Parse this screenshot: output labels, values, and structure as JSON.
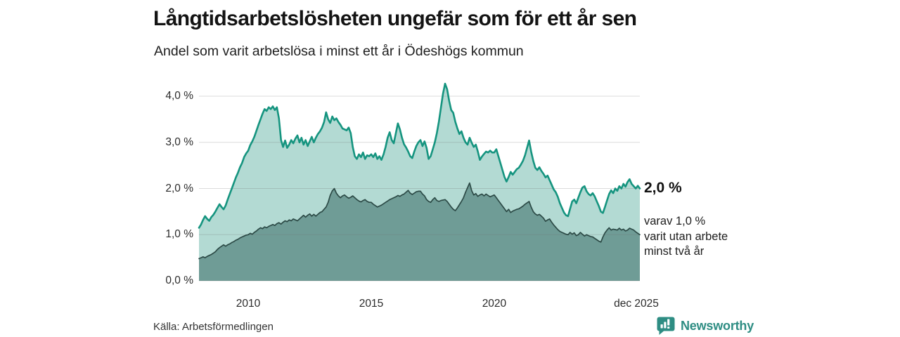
{
  "header": {
    "title": "Långtidsarbetslösheten ungefär som för ett år sen",
    "subtitle": "Andel som varit arbetslösa i minst ett år i Ödeshögs kommun"
  },
  "annotations": {
    "total_end_label": "2,0 %",
    "sub_line1": "varav 1,0 %",
    "sub_line2": "varit utan arbete",
    "sub_line3": "minst två år"
  },
  "footer": {
    "source": "Källa: Arbetsförmedlingen",
    "brand": "Newsworthy"
  },
  "colors": {
    "total_line": "#15947f",
    "total_fill": "#b3dad3",
    "two_year_line": "#2c4a46",
    "two_year_fill": "#6f9c96",
    "gridline": "rgba(110,110,110,0.25)",
    "brand_teal": "#2e8d83"
  },
  "chart_data": {
    "type": "area",
    "title": "Långtidsarbetslösheten ungefär som för ett år sen",
    "subtitle": "Andel som varit arbetslösa i minst ett år i Ödeshögs kommun",
    "x_unit": "month",
    "x_start_year": 2008.0,
    "x_end_year": 2025.9167,
    "ylim": [
      0,
      4.3
    ],
    "grid": true,
    "y_ticks": [
      {
        "v": 0,
        "label": "0,0 %"
      },
      {
        "v": 1,
        "label": "1,0 %"
      },
      {
        "v": 2,
        "label": "2,0 %"
      },
      {
        "v": 3,
        "label": "3,0 %"
      },
      {
        "v": 4,
        "label": "4,0 %"
      }
    ],
    "x_ticks": [
      {
        "t": 2010.0,
        "label": "2010"
      },
      {
        "t": 2015.0,
        "label": "2015"
      },
      {
        "t": 2020.0,
        "label": "2020"
      },
      {
        "t": 2025.9167,
        "label": "dec 2025"
      }
    ],
    "series": [
      {
        "name": "Andel arbetslösa minst ett år",
        "end_value": 2.0,
        "values": [
          1.15,
          1.22,
          1.32,
          1.4,
          1.34,
          1.3,
          1.38,
          1.43,
          1.5,
          1.58,
          1.66,
          1.6,
          1.55,
          1.63,
          1.76,
          1.88,
          2.0,
          2.12,
          2.24,
          2.34,
          2.46,
          2.55,
          2.68,
          2.76,
          2.82,
          2.94,
          3.02,
          3.12,
          3.25,
          3.38,
          3.5,
          3.62,
          3.72,
          3.68,
          3.76,
          3.72,
          3.78,
          3.7,
          3.76,
          3.52,
          3.05,
          2.9,
          3.04,
          2.88,
          2.95,
          3.05,
          2.98,
          3.08,
          3.15,
          3.0,
          3.1,
          2.95,
          3.05,
          2.92,
          3.02,
          3.12,
          3.0,
          3.1,
          3.18,
          3.24,
          3.32,
          3.44,
          3.65,
          3.5,
          3.42,
          3.56,
          3.48,
          3.52,
          3.44,
          3.38,
          3.3,
          3.28,
          3.26,
          3.32,
          3.2,
          2.9,
          2.7,
          2.64,
          2.74,
          2.68,
          2.78,
          2.64,
          2.72,
          2.7,
          2.74,
          2.68,
          2.76,
          2.64,
          2.7,
          2.62,
          2.74,
          2.9,
          3.1,
          3.22,
          3.05,
          2.98,
          3.2,
          3.41,
          3.28,
          3.1,
          2.96,
          2.89,
          2.8,
          2.7,
          2.66,
          2.8,
          2.92,
          3.0,
          3.05,
          2.92,
          3.02,
          2.88,
          2.64,
          2.7,
          2.85,
          3.0,
          3.2,
          3.45,
          3.75,
          4.05,
          4.27,
          4.15,
          3.9,
          3.7,
          3.64,
          3.45,
          3.3,
          3.18,
          3.24,
          3.1,
          3.0,
          2.95,
          3.1,
          2.99,
          2.9,
          2.95,
          2.8,
          2.62,
          2.69,
          2.75,
          2.8,
          2.78,
          2.82,
          2.78,
          2.78,
          2.85,
          2.7,
          2.55,
          2.4,
          2.25,
          2.15,
          2.25,
          2.36,
          2.3,
          2.36,
          2.42,
          2.45,
          2.52,
          2.6,
          2.72,
          2.88,
          3.04,
          2.8,
          2.6,
          2.45,
          2.4,
          2.46,
          2.38,
          2.32,
          2.24,
          2.28,
          2.18,
          2.08,
          1.98,
          1.92,
          1.82,
          1.68,
          1.58,
          1.48,
          1.42,
          1.4,
          1.56,
          1.72,
          1.76,
          1.68,
          1.8,
          1.92,
          2.02,
          2.05,
          1.94,
          1.88,
          1.85,
          1.9,
          1.83,
          1.72,
          1.62,
          1.5,
          1.47,
          1.6,
          1.74,
          1.88,
          1.96,
          1.9,
          2.0,
          1.95,
          2.05,
          2.0,
          2.1,
          2.04,
          2.14,
          2.2,
          2.1,
          2.05,
          2.0,
          2.06,
          2.0
        ]
      },
      {
        "name": "varav utan arbete minst två år",
        "end_value": 1.0,
        "values": [
          0.48,
          0.5,
          0.52,
          0.5,
          0.53,
          0.55,
          0.57,
          0.6,
          0.63,
          0.68,
          0.72,
          0.75,
          0.78,
          0.75,
          0.78,
          0.8,
          0.83,
          0.85,
          0.88,
          0.9,
          0.93,
          0.95,
          0.97,
          0.99,
          1.0,
          1.03,
          1.01,
          1.05,
          1.08,
          1.12,
          1.15,
          1.13,
          1.17,
          1.15,
          1.18,
          1.2,
          1.22,
          1.2,
          1.24,
          1.26,
          1.23,
          1.27,
          1.3,
          1.28,
          1.32,
          1.3,
          1.34,
          1.32,
          1.3,
          1.34,
          1.38,
          1.42,
          1.38,
          1.42,
          1.45,
          1.4,
          1.44,
          1.4,
          1.44,
          1.48,
          1.5,
          1.55,
          1.6,
          1.7,
          1.85,
          1.95,
          2.0,
          1.9,
          1.84,
          1.8,
          1.84,
          1.86,
          1.82,
          1.79,
          1.81,
          1.84,
          1.8,
          1.76,
          1.73,
          1.71,
          1.74,
          1.76,
          1.72,
          1.7,
          1.7,
          1.66,
          1.63,
          1.6,
          1.62,
          1.64,
          1.67,
          1.7,
          1.73,
          1.76,
          1.78,
          1.8,
          1.82,
          1.85,
          1.83,
          1.86,
          1.88,
          1.92,
          1.96,
          1.9,
          1.87,
          1.9,
          1.93,
          1.94,
          1.94,
          1.88,
          1.84,
          1.76,
          1.72,
          1.7,
          1.76,
          1.8,
          1.74,
          1.72,
          1.74,
          1.75,
          1.76,
          1.72,
          1.66,
          1.6,
          1.55,
          1.52,
          1.58,
          1.65,
          1.72,
          1.8,
          1.92,
          2.02,
          2.12,
          1.95,
          1.86,
          1.89,
          1.83,
          1.86,
          1.88,
          1.84,
          1.88,
          1.85,
          1.82,
          1.84,
          1.86,
          1.8,
          1.74,
          1.68,
          1.62,
          1.56,
          1.5,
          1.55,
          1.48,
          1.51,
          1.53,
          1.55,
          1.56,
          1.59,
          1.62,
          1.66,
          1.69,
          1.72,
          1.6,
          1.5,
          1.45,
          1.42,
          1.44,
          1.4,
          1.36,
          1.29,
          1.32,
          1.34,
          1.27,
          1.21,
          1.16,
          1.11,
          1.07,
          1.05,
          1.03,
          1.01,
          1.0,
          1.05,
          1.01,
          1.04,
          0.98,
          1.0,
          1.05,
          1.01,
          0.97,
          1.0,
          0.98,
          0.96,
          0.95,
          0.92,
          0.89,
          0.86,
          0.84,
          0.95,
          1.04,
          1.1,
          1.15,
          1.1,
          1.12,
          1.11,
          1.1,
          1.14,
          1.1,
          1.12,
          1.08,
          1.1,
          1.14,
          1.12,
          1.1,
          1.06,
          1.03,
          1.0
        ]
      }
    ]
  }
}
